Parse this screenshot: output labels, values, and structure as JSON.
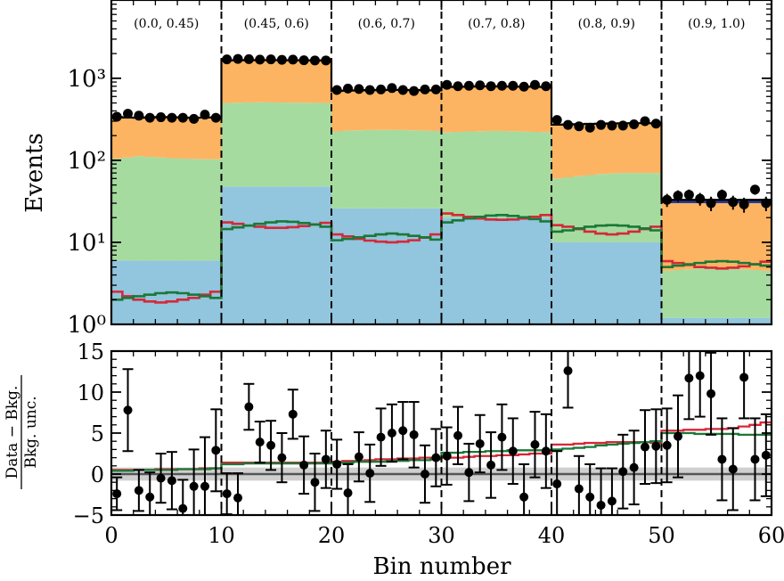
{
  "chart_data": [
    {
      "type": "bar",
      "panel": "main",
      "ylabel": "Events",
      "yscale": "log",
      "ylim": [
        1,
        9000
      ],
      "xlim": [
        0,
        60
      ],
      "yticks": [
        {
          "value": 1,
          "label": "10⁰"
        },
        {
          "value": 10,
          "label": "10¹"
        },
        {
          "value": 100,
          "label": "10²"
        },
        {
          "value": 1000,
          "label": "10³"
        }
      ],
      "region_boundaries": [
        10,
        20,
        30,
        40,
        50
      ],
      "region_labels": [
        "(0.0, 0.45)",
        "(0.45, 0.6)",
        "(0.6, 0.7)",
        "(0.7, 0.8)",
        "(0.8, 0.9)",
        "(0.9, 1.0)"
      ],
      "stack_colors": [
        "#92c5de",
        "#a6dba0",
        "#fdb462",
        "#2b3a8f"
      ],
      "stacks": [
        {
          "values": [
            6,
            6,
            6,
            6,
            6,
            6,
            6,
            6,
            6,
            6,
            48,
            48,
            48,
            48,
            48,
            48,
            48,
            48,
            48,
            48,
            26,
            26,
            26,
            26,
            26,
            26,
            26,
            26,
            26,
            26,
            20,
            20,
            20,
            20,
            20,
            20,
            20,
            20,
            20,
            20,
            10,
            10,
            10,
            10,
            10,
            10,
            10,
            10,
            10,
            10,
            1.2,
            1.2,
            1.2,
            1.2,
            1.2,
            1.2,
            1.2,
            1.2,
            1.2,
            1.2
          ]
        },
        {
          "values": [
            105,
            108,
            112,
            110,
            108,
            106,
            105,
            104,
            103,
            103,
            500,
            505,
            508,
            510,
            508,
            506,
            505,
            503,
            502,
            500,
            225,
            230,
            232,
            234,
            235,
            235,
            234,
            232,
            230,
            228,
            220,
            222,
            225,
            226,
            228,
            228,
            226,
            224,
            222,
            220,
            60,
            62,
            64,
            66,
            68,
            69,
            70,
            70,
            70,
            70,
            4.5,
            4.6,
            4.7,
            4.8,
            4.8,
            4.8,
            4.8,
            4.7,
            4.6,
            4.5
          ]
        },
        {
          "values": [
            335,
            330,
            328,
            332,
            335,
            333,
            330,
            328,
            330,
            332,
            1650,
            1655,
            1660,
            1662,
            1660,
            1658,
            1655,
            1652,
            1650,
            1648,
            700,
            705,
            710,
            715,
            718,
            720,
            718,
            715,
            712,
            710,
            780,
            785,
            790,
            795,
            795,
            792,
            790,
            788,
            785,
            780,
            270,
            272,
            274,
            276,
            278,
            280,
            281,
            282,
            282,
            280,
            30,
            30,
            30,
            30,
            30,
            30,
            30,
            30,
            30,
            30
          ]
        },
        {
          "values": [
            337,
            332,
            330,
            334,
            337,
            335,
            332,
            330,
            332,
            334,
            1652,
            1657,
            1662,
            1664,
            1662,
            1660,
            1657,
            1654,
            1652,
            1650,
            702,
            707,
            712,
            717,
            720,
            722,
            720,
            717,
            714,
            712,
            782,
            787,
            792,
            797,
            797,
            794,
            792,
            790,
            787,
            782,
            272,
            274,
            276,
            278,
            280,
            282,
            283,
            284,
            284,
            282,
            33,
            33,
            33,
            33,
            33,
            33,
            33,
            33,
            33,
            33
          ]
        }
      ],
      "signal_colors": [
        "#d62838",
        "#1b7837"
      ],
      "signals": [
        {
          "values": [
            2.5,
            2.2,
            2.0,
            1.9,
            1.85,
            1.9,
            2.0,
            2.1,
            2.3,
            2.5,
            17.5,
            16.8,
            16.0,
            15.5,
            15.0,
            15.0,
            15.3,
            15.8,
            16.5,
            17.3,
            12.5,
            11.8,
            11.0,
            10.5,
            10.2,
            10.0,
            10.2,
            10.6,
            11.4,
            12.5,
            22.5,
            21.5,
            20.5,
            19.5,
            19.0,
            18.8,
            19.0,
            19.5,
            20.5,
            21.5,
            16.2,
            15.5,
            14.5,
            13.5,
            12.8,
            12.5,
            12.8,
            13.5,
            14.5,
            15.5,
            5.9,
            5.6,
            5.3,
            5.0,
            4.9,
            4.8,
            4.9,
            5.1,
            5.4,
            5.8
          ]
        },
        {
          "values": [
            2.0,
            2.1,
            2.2,
            2.3,
            2.4,
            2.45,
            2.4,
            2.3,
            2.2,
            2.1,
            14.5,
            15.2,
            16.0,
            16.8,
            17.5,
            18.0,
            17.8,
            17.2,
            16.5,
            15.5,
            10.6,
            11.0,
            11.5,
            12.0,
            12.5,
            12.8,
            12.5,
            12.0,
            11.5,
            10.8,
            17.5,
            18.5,
            19.5,
            20.5,
            21.2,
            21.5,
            21.0,
            20.2,
            19.2,
            18.0,
            13.5,
            14.0,
            14.8,
            15.5,
            16.0,
            16.2,
            16.0,
            15.5,
            14.8,
            14.0,
            5.0,
            5.2,
            5.4,
            5.6,
            5.8,
            5.9,
            5.8,
            5.6,
            5.4,
            5.2
          ]
        }
      ],
      "data": {
        "values": [
          340,
          370,
          350,
          330,
          335,
          330,
          330,
          320,
          360,
          330,
          1700,
          1720,
          1710,
          1690,
          1700,
          1680,
          1690,
          1660,
          1650,
          1650,
          720,
          750,
          740,
          720,
          730,
          760,
          720,
          700,
          730,
          730,
          830,
          800,
          810,
          820,
          800,
          810,
          810,
          790,
          830,
          800,
          310,
          270,
          260,
          250,
          270,
          265,
          265,
          275,
          300,
          280,
          33,
          37,
          38,
          34,
          30,
          38,
          31,
          29,
          44,
          30
        ],
        "errors_up": [
          20,
          20,
          20,
          20,
          20,
          20,
          20,
          20,
          20,
          20,
          42,
          42,
          42,
          42,
          42,
          42,
          42,
          42,
          42,
          42,
          27,
          27,
          27,
          27,
          27,
          27,
          27,
          27,
          27,
          27,
          29,
          29,
          29,
          29,
          29,
          29,
          29,
          29,
          29,
          29,
          17,
          17,
          17,
          17,
          17,
          17,
          17,
          17,
          17,
          17,
          6,
          6,
          6,
          6,
          6,
          6,
          6,
          6,
          6,
          6
        ]
      }
    },
    {
      "type": "scatter",
      "panel": "ratio",
      "xlabel": "Bin number",
      "ylabel": "Data − Bkg. / Bkg. unc.",
      "ylabel_numerator": "Data − Bkg.",
      "ylabel_denominator": "Bkg. unc.",
      "xlim": [
        0,
        60
      ],
      "ylim": [
        -5,
        15
      ],
      "xticks": [
        0,
        10,
        20,
        30,
        40,
        50,
        60
      ],
      "yticks": [
        -5,
        0,
        5,
        10,
        15
      ],
      "band": [
        -0.8,
        0.8
      ],
      "points": [
        -2.4,
        7.8,
        -2.0,
        -2.8,
        -0.5,
        -0.8,
        -4.2,
        -1.5,
        -1.5,
        2.9,
        -2.4,
        -2.9,
        8.2,
        3.9,
        3.5,
        2.0,
        7.3,
        1.1,
        -1.0,
        1.8,
        1.2,
        -2.3,
        2.1,
        0.1,
        4.5,
        5.0,
        5.3,
        4.8,
        0.0,
        2.0,
        2.2,
        4.7,
        0.2,
        3.7,
        1.1,
        4.5,
        2.8,
        -2.8,
        3.6,
        2.8,
        -1.2,
        12.6,
        -1.8,
        -2.8,
        -3.8,
        -3.3,
        0.3,
        0.8,
        3.3,
        3.4,
        3.5,
        4.6,
        11.7,
        12.0,
        9.8,
        1.8,
        0.6,
        11.8,
        1.8,
        2.3
      ],
      "point_errors": [
        2.0,
        5.0,
        2.5,
        3.0,
        3.0,
        3.5,
        3.5,
        4.5,
        6.0,
        5.0,
        2.5,
        3.0,
        2.8,
        2.5,
        3.0,
        3.0,
        3.0,
        3.5,
        3.5,
        3.5,
        3.0,
        3.5,
        3.0,
        3.5,
        3.5,
        3.5,
        3.5,
        4.0,
        3.5,
        3.5,
        3.5,
        3.5,
        3.5,
        3.5,
        4.0,
        4.0,
        4.0,
        4.0,
        4.0,
        4.5,
        4.0,
        4.5,
        4.0,
        4.0,
        4.5,
        4.0,
        4.5,
        4.5,
        4.5,
        4.5,
        4.5,
        5.0,
        5.0,
        5.0,
        5.0,
        5.0,
        5.0,
        5.0,
        5.0,
        5.0
      ],
      "signals": [
        {
          "values": [
            0.5,
            0.5,
            0.5,
            0.5,
            0.6,
            0.6,
            0.6,
            0.6,
            0.7,
            0.7,
            1.4,
            1.4,
            1.4,
            1.4,
            1.4,
            1.4,
            1.4,
            1.4,
            1.4,
            1.4,
            1.5,
            1.6,
            1.6,
            1.7,
            1.8,
            1.8,
            1.9,
            1.9,
            2.0,
            2.0,
            2.0,
            2.0,
            2.1,
            2.2,
            2.2,
            2.3,
            2.3,
            2.4,
            2.5,
            2.5,
            3.6,
            3.6,
            3.7,
            3.8,
            3.8,
            3.9,
            3.9,
            3.9,
            3.9,
            3.8,
            5.3,
            5.3,
            5.4,
            5.4,
            5.5,
            5.5,
            5.6,
            5.8,
            6.0,
            6.3
          ]
        },
        {
          "values": [
            0.4,
            0.4,
            0.5,
            0.5,
            0.5,
            0.5,
            0.6,
            0.6,
            0.6,
            0.7,
            1.2,
            1.2,
            1.3,
            1.3,
            1.3,
            1.3,
            1.3,
            1.3,
            1.3,
            1.3,
            1.4,
            1.4,
            1.5,
            1.5,
            1.5,
            1.6,
            1.6,
            1.7,
            1.7,
            1.8,
            2.6,
            2.6,
            2.7,
            2.7,
            2.8,
            2.8,
            2.9,
            2.9,
            2.9,
            2.9,
            3.0,
            3.1,
            3.2,
            3.3,
            3.5,
            3.6,
            3.7,
            3.8,
            3.9,
            4.0,
            5.0,
            5.0,
            5.0,
            4.9,
            4.9,
            4.9,
            4.9,
            4.8,
            4.8,
            4.8
          ]
        }
      ]
    }
  ]
}
